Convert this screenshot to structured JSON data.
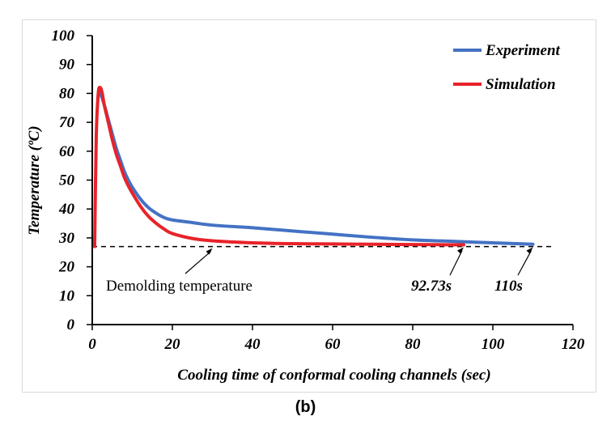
{
  "panel_label": "(b)",
  "chart_data": {
    "type": "line",
    "xlabel": "Cooling time of conformal cooling channels  (sec)",
    "ylabel": "Temperature (ºC)",
    "xlim": [
      0,
      120
    ],
    "ylim": [
      0,
      100
    ],
    "x_ticks": [
      0,
      20,
      40,
      60,
      80,
      100,
      120
    ],
    "y_ticks": [
      0,
      10,
      20,
      30,
      40,
      50,
      60,
      70,
      80,
      90,
      100
    ],
    "grid": false,
    "legend_position": "top-right",
    "series": [
      {
        "name": "Experiment",
        "color": "#4472c4",
        "x": [
          1.5,
          2,
          3,
          4,
          5,
          6,
          7,
          8,
          9,
          10,
          12,
          14,
          16,
          18,
          20,
          25,
          30,
          40,
          50,
          60,
          70,
          80,
          90,
          100,
          110
        ],
        "y": [
          79,
          80,
          76,
          71,
          66,
          61,
          57,
          53,
          50,
          47.5,
          43.5,
          40.5,
          38.5,
          37,
          36.2,
          35.3,
          34.4,
          33.5,
          32.4,
          31.3,
          30.2,
          29.3,
          28.8,
          28.3,
          27.8
        ]
      },
      {
        "name": "Simulation",
        "color": "#e8232a",
        "x": [
          0.6,
          1,
          1.5,
          2,
          2.5,
          3,
          4,
          5,
          6,
          7,
          8,
          9,
          10,
          12,
          14,
          16,
          18,
          20,
          25,
          30,
          40,
          50,
          60,
          70,
          80,
          92.73
        ],
        "y": [
          27,
          65,
          80,
          82,
          80,
          76,
          70,
          64,
          59,
          55,
          51,
          48,
          45.5,
          41,
          37.5,
          35,
          33,
          31.5,
          29.8,
          29,
          28.3,
          28,
          27.9,
          27.8,
          27.7,
          27.6
        ]
      }
    ],
    "reference_line": {
      "y": 27,
      "style": "dashed",
      "color": "#000000",
      "x_range": [
        0,
        115
      ]
    },
    "annotations": [
      {
        "text": "Demolding temperature",
        "arrow_to": [
          30,
          27
        ]
      },
      {
        "text": "92.73s",
        "arrow_to": [
          92.73,
          27.3
        ]
      },
      {
        "text": "110s",
        "arrow_to": [
          110,
          27.3
        ]
      }
    ]
  }
}
